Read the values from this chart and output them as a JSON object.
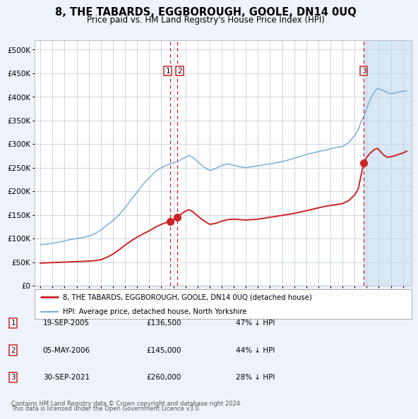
{
  "title": "8, THE TABARDS, EGGBOROUGH, GOOLE, DN14 0UQ",
  "subtitle": "Price paid vs. HM Land Registry's House Price Index (HPI)",
  "legend_line1": "8, THE TABARDS, EGGBOROUGH, GOOLE, DN14 0UQ (detached house)",
  "legend_line2": "HPI: Average price, detached house, North Yorkshire",
  "footer1": "Contains HM Land Registry data © Crown copyright and database right 2024.",
  "footer2": "This data is licensed under the Open Government Licence v3.0.",
  "hpi_color": "#7ab0d4",
  "price_color": "#cc2222",
  "bg_color": "#eef2fa",
  "plot_bg": "#ffffff",
  "marker_color": "#cc2222",
  "shade_color": "#d8e8f5",
  "vline_color": "#cc2222",
  "grid_color": "#c8d0dc",
  "table_entries": [
    {
      "num": "1",
      "date": "19-SEP-2005",
      "price": "£136,500",
      "pct": "47% ↓ HPI"
    },
    {
      "num": "2",
      "date": "05-MAY-2006",
      "price": "£145,000",
      "pct": "44% ↓ HPI"
    },
    {
      "num": "3",
      "date": "30-SEP-2021",
      "price": "£260,000",
      "pct": "28% ↓ HPI"
    }
  ],
  "sale1_x": 2005.72,
  "sale1_y": 136500,
  "sale2_x": 2006.34,
  "sale2_y": 145000,
  "sale3_x": 2021.75,
  "sale3_y": 260000,
  "ylim": [
    0,
    520000
  ],
  "xlim": [
    1994.5,
    2025.7
  ]
}
